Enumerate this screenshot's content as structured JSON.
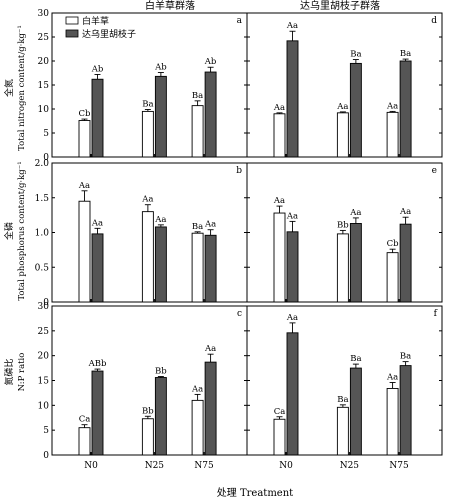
{
  "figure": {
    "xlabel": "处理 Treatment",
    "community_titles": [
      "白羊草群落",
      "达乌里胡枝子群落"
    ],
    "legend": {
      "entries": [
        {
          "label": "白羊草",
          "color": "#ffffff"
        },
        {
          "label": "达乌里胡枝子",
          "color": "#555555"
        }
      ],
      "placement": "top-left of panel a"
    }
  },
  "chart_data": [
    {
      "panel": "a",
      "type": "bar",
      "community": "白羊草群落",
      "ylabel_cn": "全氮",
      "ylabel_en": "Total nitrogen content/g·kg⁻¹",
      "ylim": [
        0,
        30
      ],
      "yticks": [
        0,
        5,
        10,
        15,
        20,
        25,
        30
      ],
      "ytick_labels": [
        "0",
        "5",
        "10",
        "15",
        "20",
        "25",
        "30"
      ],
      "categories": [
        "N0",
        "N25",
        "N75"
      ],
      "series": [
        {
          "name": "白羊草",
          "values": [
            7.6,
            9.5,
            10.7
          ],
          "errors": [
            0.3,
            0.4,
            1.0
          ],
          "letters": [
            "Cb",
            "Ba",
            "Ba"
          ]
        },
        {
          "name": "达乌里胡枝子",
          "values": [
            16.2,
            16.8,
            17.7
          ],
          "errors": [
            1.0,
            0.8,
            1.0
          ],
          "letters": [
            "Ab",
            "Ab",
            "Ab"
          ]
        }
      ]
    },
    {
      "panel": "d",
      "type": "bar",
      "community": "达乌里胡枝子群落",
      "ylim": [
        0,
        30
      ],
      "categories": [
        "N0",
        "N25",
        "N75"
      ],
      "series": [
        {
          "name": "白羊草",
          "values": [
            9.0,
            9.2,
            9.3
          ],
          "errors": [
            0.2,
            0.2,
            0.2
          ],
          "letters": [
            "Aa",
            "Aa",
            "Aa"
          ]
        },
        {
          "name": "达乌里胡枝子",
          "values": [
            24.2,
            19.5,
            20.0
          ],
          "errors": [
            2.0,
            0.8,
            0.4
          ],
          "letters": [
            "Aa",
            "Ba",
            "Ba"
          ]
        }
      ]
    },
    {
      "panel": "b",
      "type": "bar",
      "community": "白羊草群落",
      "ylabel_cn": "全磷",
      "ylabel_en": "Total phosphorus content/g·kg⁻¹",
      "ylim": [
        0,
        2.0
      ],
      "yticks": [
        0,
        0.5,
        1.0,
        1.5,
        2.0
      ],
      "ytick_labels": [
        "0",
        "0.5",
        "1.0",
        "1.5",
        "2.0"
      ],
      "categories": [
        "N0",
        "N25",
        "N75"
      ],
      "series": [
        {
          "name": "白羊草",
          "values": [
            1.45,
            1.3,
            0.99
          ],
          "errors": [
            0.15,
            0.1,
            0.02
          ],
          "letters": [
            "Aa",
            "Aa",
            "Ba"
          ]
        },
        {
          "name": "达乌里胡枝子",
          "values": [
            0.98,
            1.08,
            0.96
          ],
          "errors": [
            0.08,
            0.03,
            0.08
          ],
          "letters": [
            "Aa",
            "Aa",
            "Aa"
          ]
        }
      ]
    },
    {
      "panel": "e",
      "type": "bar",
      "community": "达乌里胡枝子群落",
      "ylim": [
        0,
        2.0
      ],
      "categories": [
        "N0",
        "N25",
        "N75"
      ],
      "series": [
        {
          "name": "白羊草",
          "values": [
            1.28,
            0.98,
            0.71
          ],
          "errors": [
            0.1,
            0.05,
            0.05
          ],
          "letters": [
            "Aa",
            "Bb",
            "Cb"
          ]
        },
        {
          "name": "达乌里胡枝子",
          "values": [
            1.01,
            1.13,
            1.12
          ],
          "errors": [
            0.15,
            0.08,
            0.1
          ],
          "letters": [
            "Aa",
            "Aa",
            "Aa"
          ]
        }
      ]
    },
    {
      "panel": "c",
      "type": "bar",
      "community": "白羊草群落",
      "ylabel_cn": "氮磷比",
      "ylabel_en": "N:P ratio",
      "ylim": [
        0,
        30
      ],
      "yticks": [
        0,
        5,
        10,
        15,
        20,
        25,
        30
      ],
      "ytick_labels": [
        "0",
        "5",
        "10",
        "15",
        "20",
        "25",
        "30"
      ],
      "categories": [
        "N0",
        "N25",
        "N75"
      ],
      "series": [
        {
          "name": "白羊草",
          "values": [
            5.5,
            7.3,
            11.0
          ],
          "errors": [
            0.6,
            0.5,
            1.2
          ],
          "letters": [
            "Ca",
            "Bb",
            "Aa"
          ]
        },
        {
          "name": "达乌里胡枝子",
          "values": [
            16.9,
            15.6,
            18.7
          ],
          "errors": [
            0.4,
            0.2,
            1.6
          ],
          "letters": [
            "ABb",
            "Bb",
            "Aa"
          ]
        }
      ]
    },
    {
      "panel": "f",
      "type": "bar",
      "community": "达乌里胡枝子群落",
      "ylim": [
        0,
        30
      ],
      "categories": [
        "N0",
        "N25",
        "N75"
      ],
      "series": [
        {
          "name": "白羊草",
          "values": [
            7.2,
            9.6,
            13.4
          ],
          "errors": [
            0.5,
            0.5,
            1.2
          ],
          "letters": [
            "Ca",
            "Ba",
            "Aa"
          ]
        },
        {
          "name": "达乌里胡枝子",
          "values": [
            24.6,
            17.5,
            18.0
          ],
          "errors": [
            2.0,
            0.8,
            0.8
          ],
          "letters": [
            "Aa",
            "Ba",
            "Ba"
          ]
        }
      ]
    }
  ]
}
